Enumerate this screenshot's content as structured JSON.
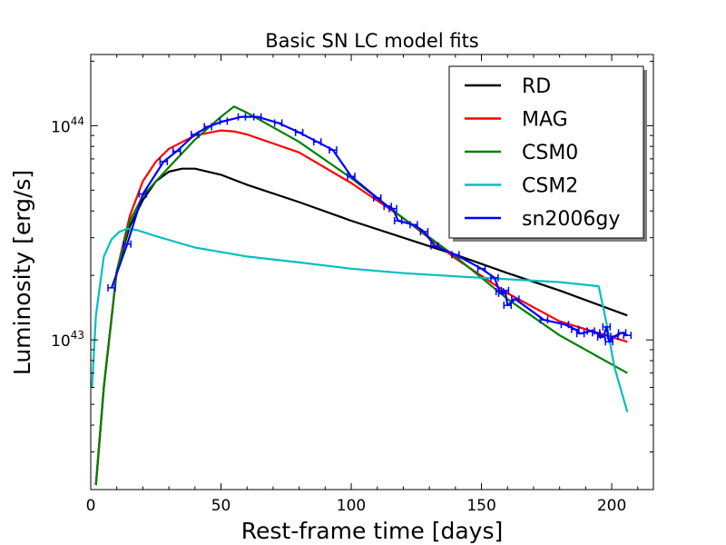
{
  "chart_data": {
    "type": "line",
    "title": "Basic SN LC model fits",
    "xlabel": "Rest-frame time [days]",
    "ylabel": "Luminosity [erg/s]",
    "xlim": [
      0,
      216
    ],
    "ylim": [
      2e+42,
      2.15e+44
    ],
    "yscale": "log",
    "grid": false,
    "legend_position": "top-right",
    "x_ticks": [
      0,
      50,
      100,
      150,
      200
    ],
    "y_ticks": [
      {
        "value": 1e+43,
        "base": "10",
        "exp": "43"
      },
      {
        "value": 1e+44,
        "base": "10",
        "exp": "44"
      }
    ],
    "series": [
      {
        "name": "RD",
        "color": "#000000",
        "x": [
          2,
          5,
          10,
          15,
          20,
          25,
          30,
          35,
          40,
          50,
          60,
          80,
          100,
          120,
          140,
          160,
          180,
          206
        ],
        "y": [
          2.1e+42,
          6e+42,
          2.1e+43,
          3.4e+43,
          4.5e+43,
          5.5e+43,
          6.1e+43,
          6.3e+43,
          6.3e+43,
          5.9e+43,
          5.3e+43,
          4.4e+43,
          3.6e+43,
          3e+43,
          2.5e+43,
          2.05e+43,
          1.7e+43,
          1.3e+43
        ]
      },
      {
        "name": "MAG",
        "color": "#ff0000",
        "x": [
          2,
          5,
          10,
          15,
          20,
          25,
          30,
          40,
          50,
          55,
          60,
          80,
          100,
          120,
          140,
          160,
          180,
          206
        ],
        "y": [
          2.1e+42,
          6e+42,
          2.1e+43,
          3.8e+43,
          5.5e+43,
          6.8e+43,
          7.8e+43,
          9e+43,
          9.5e+43,
          9.4e+43,
          9.1e+43,
          7.5e+43,
          5.4e+43,
          3.7e+43,
          2.4e+43,
          1.65e+43,
          1.22e+43,
          9.8e+42
        ]
      },
      {
        "name": "CSM0",
        "color": "#008000",
        "x": [
          2,
          5,
          10,
          15,
          20,
          25,
          30,
          40,
          50,
          55,
          60,
          80,
          100,
          120,
          140,
          160,
          180,
          206
        ],
        "y": [
          2.1e+42,
          6e+42,
          2.1e+43,
          3.6e+43,
          4.7e+43,
          5.5e+43,
          6.4e+43,
          8.6e+43,
          1.1e+44,
          1.23e+44,
          1.15e+44,
          8.4e+43,
          5.7e+43,
          3.7e+43,
          2.45e+43,
          1.55e+43,
          1.05e+43,
          7e+42
        ]
      },
      {
        "name": "CSM2",
        "color": "#00bfbf",
        "x": [
          0.5,
          2,
          5,
          8,
          11,
          14,
          18,
          25,
          40,
          60,
          80,
          100,
          120,
          140,
          160,
          180,
          195,
          198,
          201,
          206
        ],
        "y": [
          6e+42,
          1.3e+43,
          2.45e+43,
          2.95e+43,
          3.2e+43,
          3.3e+43,
          3.25e+43,
          3.05e+43,
          2.7e+43,
          2.45e+43,
          2.3e+43,
          2.15e+43,
          2.05e+43,
          1.98e+43,
          1.92e+43,
          1.86e+43,
          1.78e+43,
          1.2e+43,
          7.5e+42,
          4.6e+42
        ]
      },
      {
        "name": "sn2006gy",
        "color": "#0000ff",
        "x": [
          8,
          14,
          20,
          28,
          33,
          40,
          45,
          51,
          58,
          64,
          72,
          80,
          87,
          93,
          100,
          110,
          114,
          116,
          118,
          124,
          128,
          132,
          140,
          150,
          155,
          157,
          158,
          159,
          160,
          163,
          174,
          182,
          186,
          188,
          192,
          194,
          196,
          197,
          198,
          199,
          201,
          204,
          206
        ],
        "y": [
          1.75e+43,
          2.8e+43,
          4.8e+43,
          6.8e+43,
          7.6e+43,
          9.1e+43,
          9.9e+43,
          1.05e+44,
          1.1e+44,
          1.1e+44,
          1.03e+44,
          9.3e+43,
          8.4e+43,
          7.7e+43,
          5.8e+43,
          4.6e+43,
          4.2e+43,
          4.1e+43,
          3.6e+43,
          3.45e+43,
          3.2e+43,
          2.75e+43,
          2.5e+43,
          2.15e+43,
          1.95e+43,
          1.68e+43,
          1.65e+43,
          1.7e+43,
          1.45e+43,
          1.55e+43,
          1.24e+43,
          1.18e+43,
          1.12e+43,
          1.07e+43,
          1.1e+43,
          1.08e+43,
          1.03e+43,
          1.05e+43,
          1.15e+43,
          9.8e+42,
          1.04e+43,
          1.08e+43,
          1.05e+43
        ],
        "errorbars": true
      }
    ]
  }
}
